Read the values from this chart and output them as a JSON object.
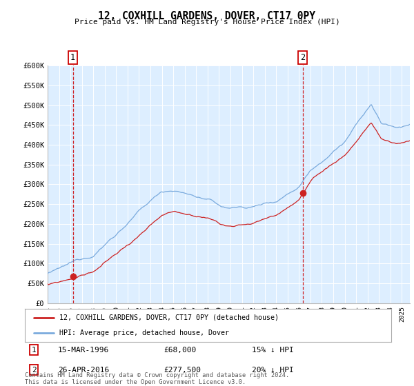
{
  "title": "12, COXHILL GARDENS, DOVER, CT17 0PY",
  "subtitle": "Price paid vs. HM Land Registry's House Price Index (HPI)",
  "ylim": [
    0,
    600000
  ],
  "yticks": [
    0,
    50000,
    100000,
    150000,
    200000,
    250000,
    300000,
    350000,
    400000,
    450000,
    500000,
    550000,
    600000
  ],
  "ytick_labels": [
    "£0",
    "£50K",
    "£100K",
    "£150K",
    "£200K",
    "£250K",
    "£300K",
    "£350K",
    "£400K",
    "£450K",
    "£500K",
    "£550K",
    "£600K"
  ],
  "hpi_color": "#7aaadd",
  "price_color": "#cc2222",
  "background_color": "#ddeeff",
  "purchase1": {
    "date_num": 1996.21,
    "price": 68000,
    "label": "1",
    "date_str": "15-MAR-1996",
    "pct": "15%"
  },
  "purchase2": {
    "date_num": 2016.32,
    "price": 277500,
    "label": "2",
    "date_str": "26-APR-2016",
    "pct": "20%"
  },
  "legend_line1": "12, COXHILL GARDENS, DOVER, CT17 0PY (detached house)",
  "legend_line2": "HPI: Average price, detached house, Dover",
  "footer": "Contains HM Land Registry data © Crown copyright and database right 2024.\nThis data is licensed under the Open Government Licence v3.0.",
  "xlim_start": 1994.0,
  "xlim_end": 2025.7,
  "note1_date": "15-MAR-1996",
  "note1_price": "£68,000",
  "note1_pct": "15% ↓ HPI",
  "note2_date": "26-APR-2016",
  "note2_price": "£277,500",
  "note2_pct": "20% ↓ HPI"
}
